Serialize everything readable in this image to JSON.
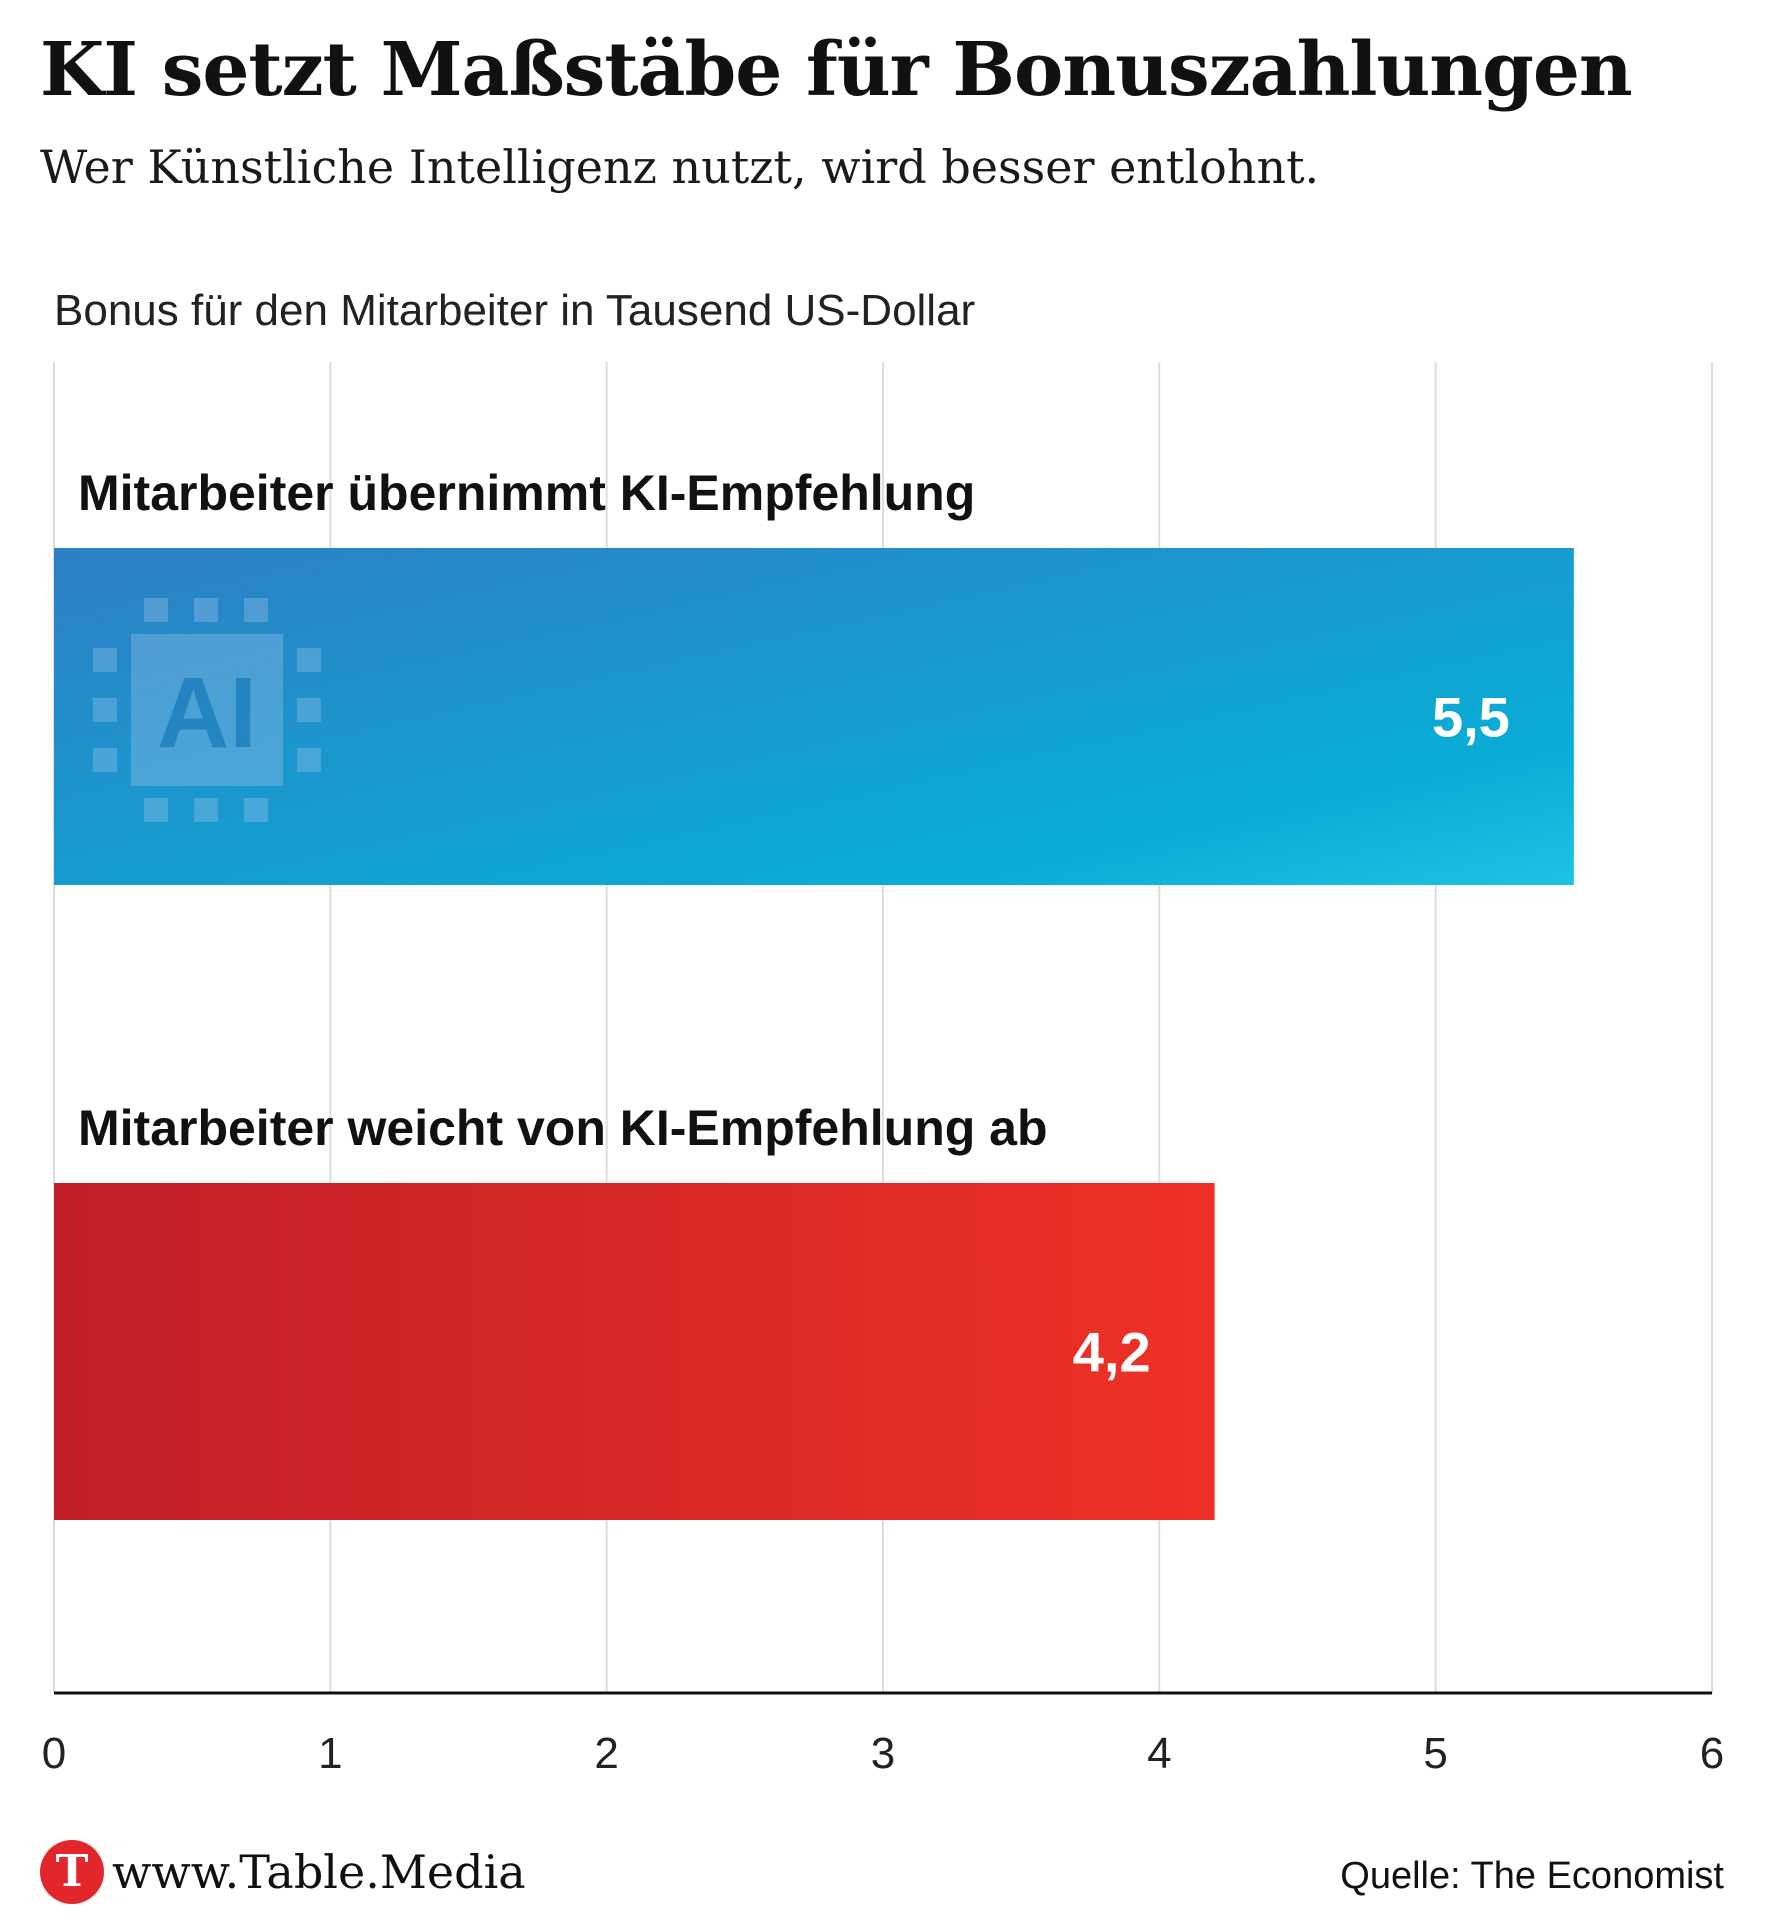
{
  "header": {
    "title": "KI setzt Maßstäbe für Bonuszahlungen",
    "subtitle": "Wer Künstliche Intelligenz nutzt, wird besser entlohnt."
  },
  "chart_data": {
    "type": "bar",
    "orientation": "horizontal",
    "unit_label": "Bonus für den Mitarbeiter in Tausend US-Dollar",
    "categories": [
      "Mitarbeiter übernimmt KI-Empfehlung",
      "Mitarbeiter weicht von KI-Empfehlung ab"
    ],
    "values": [
      5.5,
      4.2
    ],
    "value_labels": [
      "5,5",
      "4,2"
    ],
    "colors": [
      "#1e8fd0",
      "#d9262a"
    ],
    "xlim": [
      0,
      6
    ],
    "ticks": [
      0,
      1,
      2,
      3,
      4,
      5,
      6
    ],
    "tick_labels": [
      "0",
      "1",
      "2",
      "3",
      "4",
      "5",
      "6"
    ],
    "grid": true,
    "watermark_icon": "ai-chip-icon",
    "watermark_text": "AI"
  },
  "footer": {
    "logo_letter": "T",
    "site": "www.Table.Media",
    "source": "Quelle: The Economist"
  }
}
